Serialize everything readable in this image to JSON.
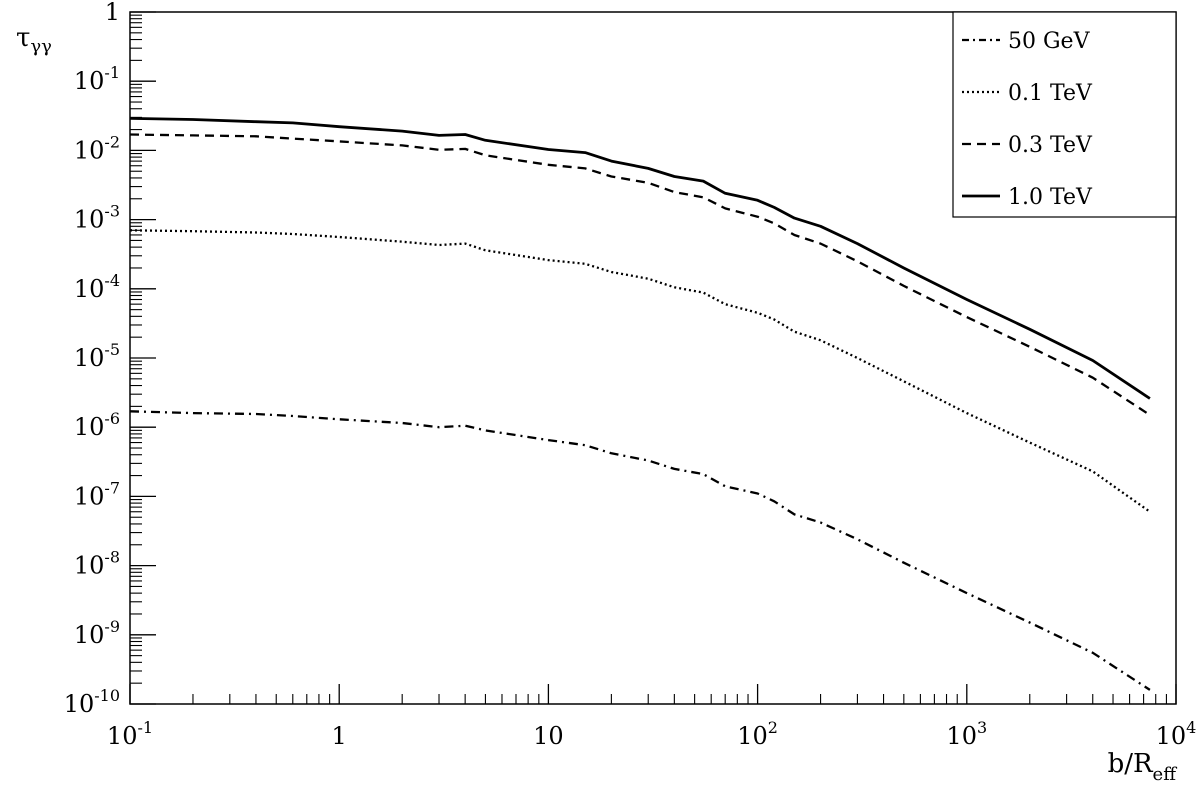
{
  "chart_data": {
    "type": "line",
    "xscale": "log",
    "yscale": "log",
    "xlim": [
      0.1,
      10000
    ],
    "ylim": [
      1e-10,
      1
    ],
    "xlabel": {
      "base": "b/R",
      "sub": "eff"
    },
    "ylabel": {
      "base": "τ",
      "sub": "γγ"
    },
    "grid": false,
    "legend": "top-right",
    "x_ticks": [
      {
        "value": 0.1,
        "base": "10",
        "exp": "-1"
      },
      {
        "value": 1,
        "base": "1",
        "exp": ""
      },
      {
        "value": 10,
        "base": "10",
        "exp": ""
      },
      {
        "value": 100,
        "base": "10",
        "exp": "2"
      },
      {
        "value": 1000,
        "base": "10",
        "exp": "3"
      },
      {
        "value": 10000,
        "base": "10",
        "exp": "4"
      }
    ],
    "y_ticks": [
      {
        "value": 1,
        "base": "1",
        "exp": ""
      },
      {
        "value": 0.1,
        "base": "10",
        "exp": "-1"
      },
      {
        "value": 0.01,
        "base": "10",
        "exp": "-2"
      },
      {
        "value": 0.001,
        "base": "10",
        "exp": "-3"
      },
      {
        "value": 0.0001,
        "base": "10",
        "exp": "-4"
      },
      {
        "value": 1e-05,
        "base": "10",
        "exp": "-5"
      },
      {
        "value": 1e-06,
        "base": "10",
        "exp": "-6"
      },
      {
        "value": 1e-07,
        "base": "10",
        "exp": "-7"
      },
      {
        "value": 1e-08,
        "base": "10",
        "exp": "-8"
      },
      {
        "value": 1e-09,
        "base": "10",
        "exp": "-9"
      },
      {
        "value": 1e-10,
        "base": "10",
        "exp": "-10"
      }
    ],
    "series": [
      {
        "name": "50 GeV",
        "style": "dashdot",
        "x": [
          0.1,
          0.2,
          0.4,
          0.6,
          1,
          2,
          3,
          4,
          5,
          10,
          15,
          20,
          30,
          40,
          55,
          70,
          100,
          120,
          150,
          200,
          300,
          500,
          1000,
          2000,
          4000,
          7500
        ],
        "y": [
          1.7e-06,
          1.6e-06,
          1.55e-06,
          1.45e-06,
          1.3e-06,
          1.15e-06,
          1e-06,
          1.05e-06,
          9e-07,
          6.5e-07,
          5.5e-07,
          4.2e-07,
          3.3e-07,
          2.5e-07,
          2.1e-07,
          1.4e-07,
          1.1e-07,
          8.5e-08,
          5.5e-08,
          4.2e-08,
          2.4e-08,
          1.1e-08,
          4e-09,
          1.5e-09,
          5.5e-10,
          1.6e-10
        ]
      },
      {
        "name": "0.1 TeV",
        "style": "dotted",
        "x": [
          0.1,
          0.2,
          0.4,
          0.6,
          1,
          2,
          3,
          4,
          5,
          10,
          15,
          20,
          30,
          40,
          55,
          70,
          100,
          120,
          150,
          200,
          300,
          500,
          1000,
          2000,
          4000,
          7500
        ],
        "y": [
          0.0007,
          0.00068,
          0.00065,
          0.00062,
          0.00056,
          0.00048,
          0.00043,
          0.00045,
          0.00036,
          0.00026,
          0.00023,
          0.000175,
          0.00014,
          0.000105,
          8.8e-05,
          6e-05,
          4.5e-05,
          3.6e-05,
          2.4e-05,
          1.8e-05,
          1e-05,
          4.6e-06,
          1.6e-06,
          6e-07,
          2.3e-07,
          6e-08
        ]
      },
      {
        "name": "0.3 TeV",
        "style": "dashed",
        "x": [
          0.1,
          0.2,
          0.4,
          0.6,
          1,
          2,
          3,
          4,
          5,
          10,
          15,
          20,
          30,
          40,
          55,
          70,
          100,
          120,
          150,
          200,
          300,
          500,
          1000,
          2000,
          4000,
          7500
        ],
        "y": [
          0.017,
          0.0165,
          0.016,
          0.0148,
          0.0135,
          0.0118,
          0.0102,
          0.0105,
          0.0085,
          0.0062,
          0.0055,
          0.0042,
          0.0034,
          0.0025,
          0.0021,
          0.00145,
          0.0011,
          0.00088,
          0.0006,
          0.00045,
          0.00025,
          0.00011,
          3.9e-05,
          1.45e-05,
          5.2e-06,
          1.5e-06
        ]
      },
      {
        "name": "1.0 TeV",
        "style": "solid",
        "x": [
          0.1,
          0.2,
          0.4,
          0.6,
          1,
          2,
          3,
          4,
          5,
          10,
          15,
          20,
          30,
          40,
          55,
          70,
          100,
          120,
          150,
          200,
          300,
          500,
          1000,
          2000,
          4000,
          7500
        ],
        "y": [
          0.029,
          0.028,
          0.026,
          0.025,
          0.022,
          0.019,
          0.0165,
          0.017,
          0.014,
          0.0103,
          0.0093,
          0.007,
          0.0055,
          0.0042,
          0.0036,
          0.0024,
          0.0019,
          0.0015,
          0.00105,
          0.0008,
          0.00045,
          0.0002,
          7e-05,
          2.6e-05,
          9.2e-06,
          2.6e-06
        ]
      }
    ]
  }
}
